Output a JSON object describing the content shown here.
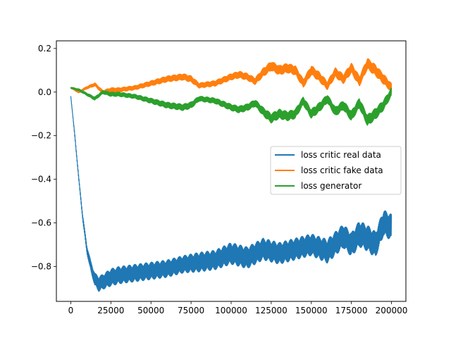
{
  "chart_data": {
    "type": "line",
    "title": "",
    "xlabel": "",
    "ylabel": "",
    "xlim": [
      -9000,
      209000
    ],
    "ylim": [
      -0.96,
      0.235
    ],
    "x_ticks": [
      0,
      25000,
      50000,
      75000,
      100000,
      125000,
      150000,
      175000,
      200000
    ],
    "y_ticks": [
      -0.8,
      -0.6,
      -0.4,
      -0.2,
      0.0,
      0.2
    ],
    "grid": false,
    "legend_position": "center-right",
    "series": [
      {
        "name": "loss critic real data",
        "color": "#1f77b4",
        "x": [
          0,
          2500,
          5000,
          7500,
          10000,
          12500,
          15000,
          17500,
          20000,
          25000,
          30000,
          40000,
          50000,
          60000,
          70000,
          80000,
          90000,
          100000,
          110000,
          120000,
          130000,
          140000,
          150000,
          160000,
          170000,
          175000,
          180000,
          185000,
          190000,
          195000,
          200000
        ],
        "values": [
          -0.02,
          -0.2,
          -0.4,
          -0.58,
          -0.72,
          -0.8,
          -0.86,
          -0.88,
          -0.87,
          -0.85,
          -0.84,
          -0.83,
          -0.82,
          -0.81,
          -0.79,
          -0.78,
          -0.77,
          -0.74,
          -0.76,
          -0.72,
          -0.74,
          -0.72,
          -0.7,
          -0.73,
          -0.66,
          -0.7,
          -0.65,
          -0.67,
          -0.7,
          -0.6,
          -0.62
        ],
        "band": [
          0,
          0.01,
          0.01,
          0.015,
          0.02,
          0.025,
          0.03,
          0.035,
          0.035,
          0.04,
          0.04,
          0.04,
          0.04,
          0.04,
          0.04,
          0.045,
          0.045,
          0.05,
          0.05,
          0.05,
          0.05,
          0.05,
          0.05,
          0.055,
          0.055,
          0.055,
          0.06,
          0.06,
          0.06,
          0.06,
          0.06
        ]
      },
      {
        "name": "loss critic fake data",
        "color": "#ff7f0e",
        "x": [
          0,
          5000,
          10000,
          15000,
          20000,
          25000,
          30000,
          40000,
          50000,
          60000,
          70000,
          75000,
          80000,
          90000,
          100000,
          105000,
          110000,
          115000,
          120000,
          125000,
          130000,
          135000,
          140000,
          145000,
          150000,
          155000,
          160000,
          165000,
          170000,
          175000,
          180000,
          185000,
          190000,
          195000,
          200000
        ],
        "values": [
          0.02,
          0.0,
          0.02,
          0.035,
          0.0,
          0.01,
          0.01,
          0.02,
          0.04,
          0.06,
          0.07,
          0.06,
          0.03,
          0.04,
          0.07,
          0.08,
          0.07,
          0.05,
          0.09,
          0.12,
          0.1,
          0.11,
          0.1,
          0.04,
          0.1,
          0.07,
          0.03,
          0.09,
          0.06,
          0.11,
          0.05,
          0.13,
          0.1,
          0.06,
          0.02
        ],
        "band": [
          0.003,
          0.005,
          0.006,
          0.008,
          0.008,
          0.01,
          0.01,
          0.01,
          0.012,
          0.014,
          0.015,
          0.015,
          0.012,
          0.013,
          0.015,
          0.016,
          0.016,
          0.016,
          0.02,
          0.022,
          0.022,
          0.022,
          0.022,
          0.02,
          0.022,
          0.022,
          0.02,
          0.022,
          0.022,
          0.024,
          0.024,
          0.026,
          0.026,
          0.024,
          0.02
        ]
      },
      {
        "name": "loss generator",
        "color": "#2ca02c",
        "x": [
          0,
          5000,
          10000,
          15000,
          20000,
          25000,
          30000,
          40000,
          50000,
          60000,
          70000,
          75000,
          80000,
          90000,
          100000,
          105000,
          110000,
          115000,
          120000,
          125000,
          130000,
          135000,
          140000,
          145000,
          150000,
          155000,
          160000,
          165000,
          170000,
          175000,
          180000,
          185000,
          190000,
          195000,
          200000
        ],
        "values": [
          0.02,
          0.01,
          -0.01,
          -0.03,
          0.0,
          -0.01,
          -0.01,
          -0.02,
          -0.04,
          -0.06,
          -0.07,
          -0.06,
          -0.03,
          -0.04,
          -0.07,
          -0.08,
          -0.07,
          -0.05,
          -0.09,
          -0.12,
          -0.1,
          -0.11,
          -0.1,
          -0.04,
          -0.1,
          -0.07,
          -0.03,
          -0.09,
          -0.06,
          -0.11,
          -0.05,
          -0.13,
          -0.1,
          -0.06,
          0.0
        ],
        "band": [
          0.003,
          0.005,
          0.006,
          0.008,
          0.008,
          0.01,
          0.01,
          0.01,
          0.012,
          0.014,
          0.015,
          0.015,
          0.012,
          0.013,
          0.015,
          0.016,
          0.016,
          0.016,
          0.02,
          0.022,
          0.022,
          0.022,
          0.022,
          0.02,
          0.022,
          0.022,
          0.02,
          0.022,
          0.022,
          0.024,
          0.024,
          0.026,
          0.026,
          0.024,
          0.02
        ]
      }
    ]
  }
}
